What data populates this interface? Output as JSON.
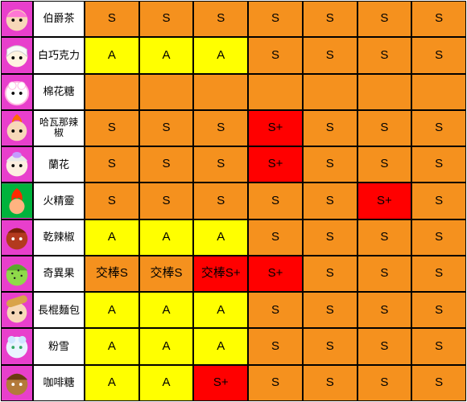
{
  "colors": {
    "S": "#f5911e",
    "A": "#ffff00",
    "S+": "#ff0000",
    "name_bg": "#ffffff",
    "avatar_bg": "#e83fcc",
    "border": "#000000",
    "text": "#000000"
  },
  "cell_font_size": 15,
  "name_font_size": 13,
  "columns": 7,
  "rows": [
    {
      "name": "伯爵茶",
      "avatar": "a1",
      "cells": [
        "S",
        "S",
        "S",
        "S",
        "S",
        "S",
        "S"
      ]
    },
    {
      "name": "白巧克力",
      "avatar": "a2",
      "cells": [
        "A",
        "A",
        "A",
        "S",
        "S",
        "S",
        "S"
      ]
    },
    {
      "name": "棉花糖",
      "avatar": "a3",
      "cells": [
        "",
        "",
        "",
        "",
        "",
        "",
        ""
      ]
    },
    {
      "name": "哈瓦那辣椒",
      "avatar": "a4",
      "twoLine": true,
      "cells": [
        "S",
        "S",
        "S",
        "S+",
        "S",
        "S",
        "S"
      ]
    },
    {
      "name": "蘭花",
      "avatar": "a5",
      "cells": [
        "S",
        "S",
        "S",
        "S+",
        "S",
        "S",
        "S"
      ]
    },
    {
      "name": "火精靈",
      "avatar": "a6",
      "cells": [
        "S",
        "S",
        "S",
        "S",
        "S",
        "S+",
        "S"
      ]
    },
    {
      "name": "乾辣椒",
      "avatar": "a7",
      "cells": [
        "A",
        "A",
        "A",
        "S",
        "S",
        "S",
        "S"
      ]
    },
    {
      "name": "奇異果",
      "avatar": "a8",
      "cells": [
        "交棒S",
        "交棒S",
        "交棒S+",
        "S+",
        "S",
        "S",
        "S"
      ],
      "overrides": {
        "0": "#f5911e",
        "1": "#f5911e",
        "2": "#ff0000"
      }
    },
    {
      "name": "長棍麵包",
      "avatar": "a9",
      "cells": [
        "A",
        "A",
        "A",
        "S",
        "S",
        "S",
        "S"
      ]
    },
    {
      "name": "粉雪",
      "avatar": "a10",
      "cells": [
        "A",
        "A",
        "A",
        "S",
        "S",
        "S",
        "S"
      ]
    },
    {
      "name": "咖啡糖",
      "avatar": "a11",
      "cells": [
        "A",
        "A",
        "S+",
        "S",
        "S",
        "S",
        "S"
      ]
    }
  ],
  "tier_labels": {
    "S": "S",
    "A": "A",
    "S+": "S+"
  }
}
